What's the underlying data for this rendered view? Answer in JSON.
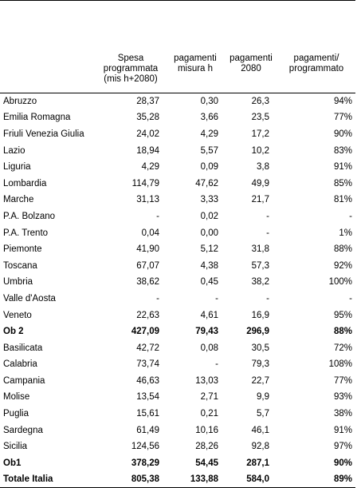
{
  "table": {
    "headers": [
      "",
      "Spesa programmata (mis h+2080)",
      "pagamenti misura h",
      "pagamenti 2080",
      "pagamenti/ programmato"
    ],
    "rows": [
      {
        "region": "Abruzzo",
        "spesa": "28,37",
        "pag_h": "0,30",
        "pag_2080": "26,3",
        "ratio": "94%",
        "bold": false
      },
      {
        "region": "Emilia Romagna",
        "spesa": "35,28",
        "pag_h": "3,66",
        "pag_2080": "23,5",
        "ratio": "77%",
        "bold": false
      },
      {
        "region": "Friuli Venezia Giulia",
        "spesa": "24,02",
        "pag_h": "4,29",
        "pag_2080": "17,2",
        "ratio": "90%",
        "bold": false
      },
      {
        "region": "Lazio",
        "spesa": "18,94",
        "pag_h": "5,57",
        "pag_2080": "10,2",
        "ratio": "83%",
        "bold": false
      },
      {
        "region": "Liguria",
        "spesa": "4,29",
        "pag_h": "0,09",
        "pag_2080": "3,8",
        "ratio": "91%",
        "bold": false
      },
      {
        "region": "Lombardia",
        "spesa": "114,79",
        "pag_h": "47,62",
        "pag_2080": "49,9",
        "ratio": "85%",
        "bold": false
      },
      {
        "region": "Marche",
        "spesa": "31,13",
        "pag_h": "3,33",
        "pag_2080": "21,7",
        "ratio": "81%",
        "bold": false
      },
      {
        "region": "P.A. Bolzano",
        "spesa": "-",
        "pag_h": "0,02",
        "pag_2080": "-",
        "ratio": "-",
        "bold": false
      },
      {
        "region": "P.A. Trento",
        "spesa": "0,04",
        "pag_h": "0,00",
        "pag_2080": "-",
        "ratio": "1%",
        "bold": false
      },
      {
        "region": "Piemonte",
        "spesa": "41,90",
        "pag_h": "5,12",
        "pag_2080": "31,8",
        "ratio": "88%",
        "bold": false
      },
      {
        "region": "Toscana",
        "spesa": "67,07",
        "pag_h": "4,38",
        "pag_2080": "57,3",
        "ratio": "92%",
        "bold": false
      },
      {
        "region": "Umbria",
        "spesa": "38,62",
        "pag_h": "0,45",
        "pag_2080": "38,2",
        "ratio": "100%",
        "bold": false
      },
      {
        "region": "Valle d'Aosta",
        "spesa": "-",
        "pag_h": "-",
        "pag_2080": "-",
        "ratio": "-",
        "bold": false
      },
      {
        "region": "Veneto",
        "spesa": "22,63",
        "pag_h": "4,61",
        "pag_2080": "16,9",
        "ratio": "95%",
        "bold": false
      },
      {
        "region": "Ob 2",
        "spesa": "427,09",
        "pag_h": "79,43",
        "pag_2080": "296,9",
        "ratio": "88%",
        "bold": true
      },
      {
        "region": "Basilicata",
        "spesa": "42,72",
        "pag_h": "0,08",
        "pag_2080": "30,5",
        "ratio": "72%",
        "bold": false
      },
      {
        "region": "Calabria",
        "spesa": "73,74",
        "pag_h": "-",
        "pag_2080": "79,3",
        "ratio": "108%",
        "bold": false
      },
      {
        "region": "Campania",
        "spesa": "46,63",
        "pag_h": "13,03",
        "pag_2080": "22,7",
        "ratio": "77%",
        "bold": false
      },
      {
        "region": "Molise",
        "spesa": "13,54",
        "pag_h": "2,71",
        "pag_2080": "9,9",
        "ratio": "93%",
        "bold": false
      },
      {
        "region": "Puglia",
        "spesa": "15,61",
        "pag_h": "0,21",
        "pag_2080": "5,7",
        "ratio": "38%",
        "bold": false
      },
      {
        "region": "Sardegna",
        "spesa": "61,49",
        "pag_h": "10,16",
        "pag_2080": "46,1",
        "ratio": "91%",
        "bold": false
      },
      {
        "region": "Sicilia",
        "spesa": "124,56",
        "pag_h": "28,26",
        "pag_2080": "92,8",
        "ratio": "97%",
        "bold": false
      },
      {
        "region": "Ob1",
        "spesa": "378,29",
        "pag_h": "54,45",
        "pag_2080": "287,1",
        "ratio": "90%",
        "bold": true
      },
      {
        "region": "Totale Italia",
        "spesa": "805,38",
        "pag_h": "133,88",
        "pag_2080": "584,0",
        "ratio": "89%",
        "bold": true
      }
    ]
  }
}
